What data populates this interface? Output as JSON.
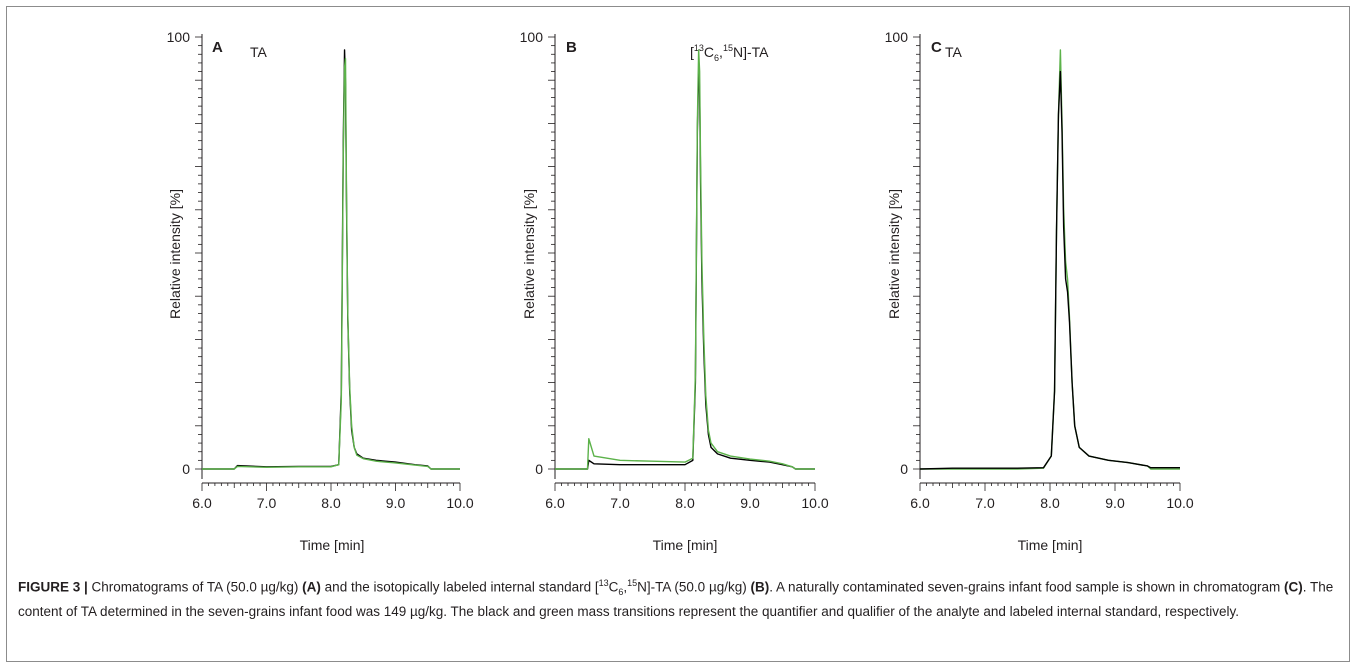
{
  "chart_data": [
    {
      "type": "line",
      "panel_label": "A",
      "peak_label": "TA",
      "xlabel": "Time [min]",
      "ylabel": "Relative intensity [%]",
      "xlim": [
        6.0,
        10.0
      ],
      "ylim": [
        0,
        100
      ],
      "xticks": [
        "6.0",
        "7.0",
        "8.0",
        "9.0",
        "10.0"
      ],
      "yticks": [
        "0",
        "100"
      ],
      "series": [
        {
          "color": "#000000",
          "x": [
            6.0,
            6.5,
            6.55,
            7.0,
            7.5,
            8.0,
            8.12,
            8.16,
            8.19,
            8.21,
            8.225,
            8.24,
            8.26,
            8.29,
            8.32,
            8.36,
            8.4,
            8.5,
            8.7,
            9.0,
            9.3,
            9.5,
            9.55,
            10.0
          ],
          "y": [
            0,
            0,
            0.8,
            0.5,
            0.6,
            0.6,
            1,
            18,
            75,
            97,
            89,
            62,
            35,
            18,
            9,
            5,
            3.5,
            2.5,
            2,
            1.6,
            1,
            0.7,
            0,
            0
          ]
        },
        {
          "color": "#5cb24a",
          "x": [
            6.0,
            6.5,
            6.55,
            7.0,
            7.5,
            8.0,
            8.12,
            8.16,
            8.19,
            8.21,
            8.225,
            8.24,
            8.26,
            8.29,
            8.32,
            8.36,
            8.4,
            8.5,
            8.7,
            9.0,
            9.3,
            9.5,
            9.55,
            10.0
          ],
          "y": [
            0,
            0,
            0.6,
            0.4,
            0.5,
            0.5,
            1,
            16,
            72,
            93,
            95,
            64,
            36,
            19,
            10,
            5,
            3.2,
            2.4,
            1.8,
            1.4,
            0.9,
            0.6,
            0,
            0
          ]
        }
      ]
    },
    {
      "type": "line",
      "panel_label": "B",
      "peak_label_prefix": "[",
      "peak_label_sup1": "13",
      "peak_label_mid1": "C",
      "peak_label_sub": "6",
      "peak_label_mid2": ",",
      "peak_label_sup2": "15",
      "peak_label_suffix": "N]-TA",
      "xlabel": "Time [min]",
      "ylabel": "Relative intensity [%]",
      "xlim": [
        6.0,
        10.0
      ],
      "ylim": [
        0,
        100
      ],
      "xticks": [
        "6.0",
        "7.0",
        "8.0",
        "9.0",
        "10.0"
      ],
      "yticks": [
        "0",
        "100"
      ],
      "series": [
        {
          "color": "#000000",
          "x": [
            6.0,
            6.5,
            6.52,
            6.6,
            7.0,
            7.5,
            8.0,
            8.12,
            8.16,
            8.19,
            8.21,
            8.225,
            8.24,
            8.26,
            8.29,
            8.32,
            8.36,
            8.4,
            8.5,
            8.7,
            9.0,
            9.3,
            9.5,
            9.65,
            9.7,
            10.0
          ],
          "y": [
            0,
            0,
            2,
            1.2,
            1,
            1,
            1,
            2,
            20,
            78,
            92,
            88,
            66,
            44,
            27,
            15,
            8,
            5,
            3.5,
            2.5,
            2,
            1.6,
            1,
            0.5,
            0,
            0
          ]
        },
        {
          "color": "#5cb24a",
          "x": [
            6.0,
            6.5,
            6.52,
            6.6,
            7.0,
            7.5,
            8.0,
            8.12,
            8.16,
            8.19,
            8.21,
            8.225,
            8.24,
            8.26,
            8.29,
            8.32,
            8.36,
            8.4,
            8.5,
            8.7,
            9.0,
            9.3,
            9.5,
            9.65,
            9.7,
            10.0
          ],
          "y": [
            0,
            0,
            7,
            3,
            2,
            1.8,
            1.6,
            2.5,
            22,
            80,
            97,
            92,
            70,
            48,
            30,
            17,
            9,
            6,
            4,
            3,
            2.3,
            1.8,
            1.2,
            0.5,
            0,
            0
          ]
        }
      ]
    },
    {
      "type": "line",
      "panel_label": "C",
      "peak_label": "TA",
      "xlabel": "Time [min]",
      "ylabel": "Relative intensity [%]",
      "xlim": [
        6.0,
        10.0
      ],
      "ylim": [
        0,
        100
      ],
      "xticks": [
        "6.0",
        "7.0",
        "8.0",
        "9.0",
        "10.0"
      ],
      "yticks": [
        "0",
        "100"
      ],
      "series": [
        {
          "color": "#5cb24a",
          "x": [
            6.0,
            6.5,
            7.0,
            7.5,
            7.9,
            8.02,
            8.07,
            8.1,
            8.13,
            8.16,
            8.185,
            8.21,
            8.24,
            8.27,
            8.3,
            8.34,
            8.38,
            8.45,
            8.6,
            8.9,
            9.2,
            9.5,
            9.55,
            10.0
          ],
          "y": [
            0,
            0,
            0,
            0,
            0.2,
            3,
            18,
            55,
            82,
            97,
            80,
            60,
            48,
            44,
            35,
            20,
            10,
            5,
            3,
            2,
            1.5,
            0.7,
            0,
            0
          ]
        },
        {
          "color": "#000000",
          "x": [
            6.0,
            6.5,
            7.0,
            7.5,
            7.9,
            8.02,
            8.07,
            8.1,
            8.13,
            8.16,
            8.185,
            8.21,
            8.24,
            8.27,
            8.3,
            8.34,
            8.38,
            8.45,
            8.6,
            8.9,
            9.2,
            9.5,
            9.55,
            10.0
          ],
          "y": [
            0,
            0.2,
            0.2,
            0.2,
            0.3,
            3,
            18,
            55,
            82,
            92,
            78,
            56,
            44,
            41,
            34,
            20,
            10,
            5,
            3,
            2,
            1.5,
            0.7,
            0.3,
            0.3
          ]
        }
      ]
    }
  ],
  "caption": {
    "figure_label": "FIGURE 3 |",
    "t1": " Chromatograms of TA (50.0 µg/kg) ",
    "ref_a": "(A)",
    "t2": " and the isotopically labeled internal standard [",
    "sup1": "13",
    "t3": "C",
    "sub1": "6",
    "t4": ",",
    "sup2": "15",
    "t5": "N]-TA (50.0 µg/kg) ",
    "ref_b": "(B)",
    "t6": ". A naturally contaminated seven-grains infant food sample is shown in chromatogram ",
    "ref_c": "(C)",
    "t7": ". The content of TA determined in the seven-grains infant food was 149 µg/kg. The black and green mass transitions represent the quantifier and qualifier of the analyte and labeled internal standard, respectively."
  }
}
